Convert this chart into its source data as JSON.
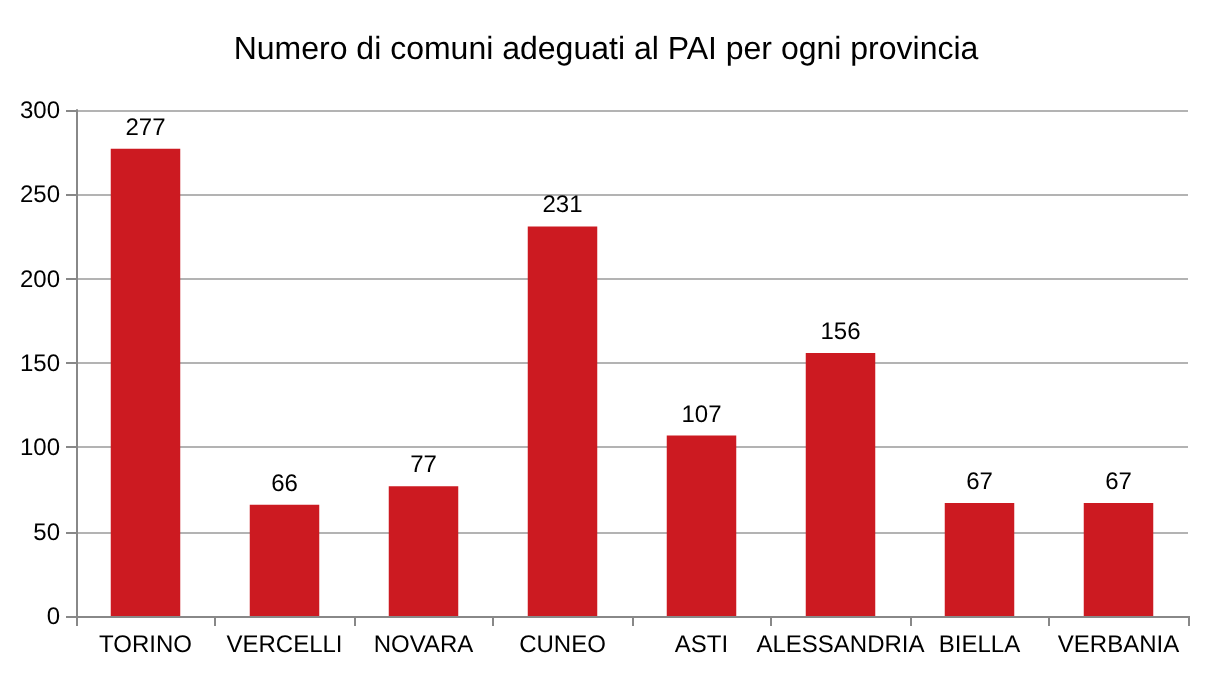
{
  "chart_data": {
    "type": "bar",
    "title": "Numero di comuni adeguati al PAI per ogni provincia",
    "categories": [
      "TORINO",
      "VERCELLI",
      "NOVARA",
      "CUNEO",
      "ASTI",
      "ALESSANDRIA",
      "BIELLA",
      "VERBANIA"
    ],
    "values": [
      277,
      66,
      77,
      231,
      107,
      156,
      67,
      67
    ],
    "color": "#cc1a21",
    "ylim": [
      0,
      300
    ],
    "yticks": [
      0,
      50,
      100,
      150,
      200,
      250,
      300
    ],
    "grid": "y",
    "data_labels": true
  }
}
